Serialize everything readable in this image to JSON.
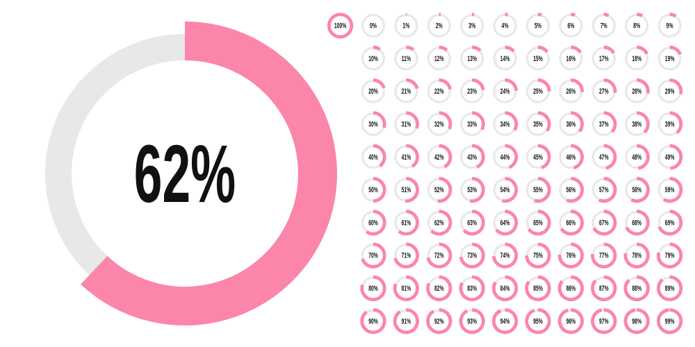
{
  "chart_data": {
    "type": "donut-grid",
    "color": "#fc85aa",
    "track_color": "#e8e8e8",
    "main": {
      "value": 62,
      "label": "62%"
    },
    "items": [
      {
        "value": 100,
        "label": "100%"
      },
      {
        "value": 0,
        "label": "0%"
      },
      {
        "value": 1,
        "label": "1%"
      },
      {
        "value": 2,
        "label": "2%"
      },
      {
        "value": 3,
        "label": "3%"
      },
      {
        "value": 4,
        "label": "4%"
      },
      {
        "value": 5,
        "label": "5%"
      },
      {
        "value": 6,
        "label": "6%"
      },
      {
        "value": 7,
        "label": "7%"
      },
      {
        "value": 8,
        "label": "8%"
      },
      {
        "value": 9,
        "label": "9%"
      },
      {
        "value": 10,
        "label": "10%"
      },
      {
        "value": 11,
        "label": "11%"
      },
      {
        "value": 12,
        "label": "12%"
      },
      {
        "value": 13,
        "label": "13%"
      },
      {
        "value": 14,
        "label": "14%"
      },
      {
        "value": 15,
        "label": "15%"
      },
      {
        "value": 16,
        "label": "16%"
      },
      {
        "value": 17,
        "label": "17%"
      },
      {
        "value": 18,
        "label": "18%"
      },
      {
        "value": 19,
        "label": "19%"
      },
      {
        "value": 20,
        "label": "20%"
      },
      {
        "value": 21,
        "label": "21%"
      },
      {
        "value": 22,
        "label": "22%"
      },
      {
        "value": 23,
        "label": "23%"
      },
      {
        "value": 24,
        "label": "24%"
      },
      {
        "value": 25,
        "label": "25%"
      },
      {
        "value": 26,
        "label": "26%"
      },
      {
        "value": 27,
        "label": "27%"
      },
      {
        "value": 28,
        "label": "28%"
      },
      {
        "value": 29,
        "label": "29%"
      },
      {
        "value": 30,
        "label": "30%"
      },
      {
        "value": 31,
        "label": "31%"
      },
      {
        "value": 32,
        "label": "32%"
      },
      {
        "value": 33,
        "label": "33%"
      },
      {
        "value": 34,
        "label": "34%"
      },
      {
        "value": 35,
        "label": "35%"
      },
      {
        "value": 36,
        "label": "36%"
      },
      {
        "value": 37,
        "label": "37%"
      },
      {
        "value": 38,
        "label": "38%"
      },
      {
        "value": 39,
        "label": "39%"
      },
      {
        "value": 40,
        "label": "40%"
      },
      {
        "value": 41,
        "label": "41%"
      },
      {
        "value": 42,
        "label": "42%"
      },
      {
        "value": 43,
        "label": "43%"
      },
      {
        "value": 44,
        "label": "44%"
      },
      {
        "value": 45,
        "label": "45%"
      },
      {
        "value": 46,
        "label": "46%"
      },
      {
        "value": 47,
        "label": "47%"
      },
      {
        "value": 48,
        "label": "48%"
      },
      {
        "value": 49,
        "label": "49%"
      },
      {
        "value": 50,
        "label": "50%"
      },
      {
        "value": 51,
        "label": "51%"
      },
      {
        "value": 52,
        "label": "52%"
      },
      {
        "value": 53,
        "label": "53%"
      },
      {
        "value": 54,
        "label": "54%"
      },
      {
        "value": 55,
        "label": "55%"
      },
      {
        "value": 56,
        "label": "56%"
      },
      {
        "value": 57,
        "label": "57%"
      },
      {
        "value": 58,
        "label": "58%"
      },
      {
        "value": 59,
        "label": "59%"
      },
      {
        "value": 60,
        "label": "60%"
      },
      {
        "value": 61,
        "label": "61%"
      },
      {
        "value": 62,
        "label": "62%"
      },
      {
        "value": 63,
        "label": "63%"
      },
      {
        "value": 64,
        "label": "64%"
      },
      {
        "value": 65,
        "label": "65%"
      },
      {
        "value": 66,
        "label": "66%"
      },
      {
        "value": 67,
        "label": "67%"
      },
      {
        "value": 68,
        "label": "68%"
      },
      {
        "value": 69,
        "label": "69%"
      },
      {
        "value": 70,
        "label": "70%"
      },
      {
        "value": 71,
        "label": "71%"
      },
      {
        "value": 72,
        "label": "72%"
      },
      {
        "value": 73,
        "label": "73%"
      },
      {
        "value": 74,
        "label": "74%"
      },
      {
        "value": 75,
        "label": "75%"
      },
      {
        "value": 76,
        "label": "76%"
      },
      {
        "value": 77,
        "label": "77%"
      },
      {
        "value": 78,
        "label": "78%"
      },
      {
        "value": 79,
        "label": "79%"
      },
      {
        "value": 80,
        "label": "80%"
      },
      {
        "value": 81,
        "label": "81%"
      },
      {
        "value": 82,
        "label": "82%"
      },
      {
        "value": 83,
        "label": "83%"
      },
      {
        "value": 84,
        "label": "84%"
      },
      {
        "value": 85,
        "label": "85%"
      },
      {
        "value": 86,
        "label": "86%"
      },
      {
        "value": 87,
        "label": "87%"
      },
      {
        "value": 88,
        "label": "88%"
      },
      {
        "value": 89,
        "label": "89%"
      },
      {
        "value": 90,
        "label": "90%"
      },
      {
        "value": 91,
        "label": "91%"
      },
      {
        "value": 92,
        "label": "92%"
      },
      {
        "value": 93,
        "label": "93%"
      },
      {
        "value": 94,
        "label": "94%"
      },
      {
        "value": 95,
        "label": "95%"
      },
      {
        "value": 96,
        "label": "96%"
      },
      {
        "value": 97,
        "label": "97%"
      },
      {
        "value": 98,
        "label": "98%"
      },
      {
        "value": 99,
        "label": "99%"
      }
    ]
  }
}
